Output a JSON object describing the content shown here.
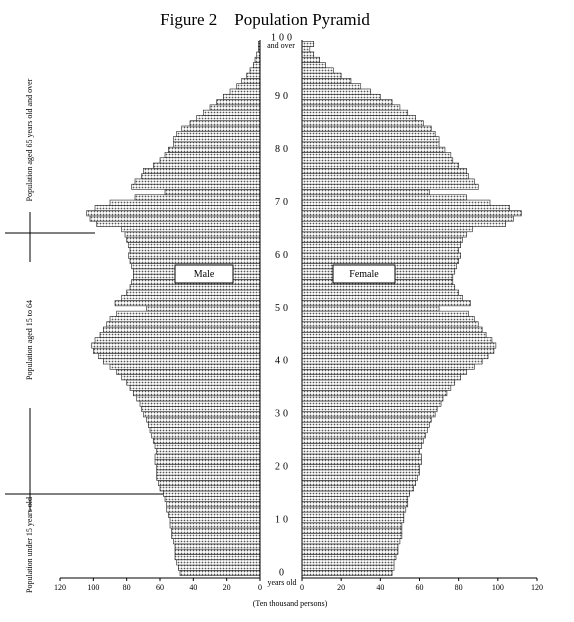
{
  "chart_data": {
    "type": "pyramid",
    "title": "Figure 2　Population Pyramid",
    "x": [
      0,
      1,
      2,
      3,
      4,
      5,
      6,
      7,
      8,
      9,
      10,
      11,
      12,
      13,
      14,
      15,
      16,
      17,
      18,
      19,
      20,
      21,
      22,
      23,
      24,
      25,
      26,
      27,
      28,
      29,
      30,
      31,
      32,
      33,
      34,
      35,
      36,
      37,
      38,
      39,
      40,
      41,
      42,
      43,
      44,
      45,
      46,
      47,
      48,
      49,
      50,
      51,
      52,
      53,
      54,
      55,
      56,
      57,
      58,
      59,
      60,
      61,
      62,
      63,
      64,
      65,
      66,
      67,
      68,
      69,
      70,
      71,
      72,
      73,
      74,
      75,
      76,
      77,
      78,
      79,
      80,
      81,
      82,
      83,
      84,
      85,
      86,
      87,
      88,
      89,
      90,
      91,
      92,
      93,
      94,
      95,
      96,
      97,
      98,
      99,
      100
    ],
    "xlim": [
      0,
      100
    ],
    "xticks": [
      0,
      10,
      20,
      30,
      40,
      50,
      60,
      70,
      80,
      90,
      100
    ],
    "top_age_label": "and over",
    "age_unit": "years old",
    "value_axis_label": "(Ten thousand persons)",
    "ylim": [
      0,
      120
    ],
    "yticks": [
      0,
      20,
      40,
      60,
      80,
      100,
      120
    ],
    "series": [
      {
        "name": "Male",
        "side": "left",
        "color": "#c8c8c8",
        "values": [
          48,
          49,
          50,
          51,
          51,
          51,
          52,
          53,
          53,
          54,
          54,
          55,
          56,
          56,
          57,
          58,
          60,
          61,
          62,
          62,
          62,
          63,
          63,
          62,
          63,
          64,
          65,
          66,
          67,
          68,
          70,
          71,
          72,
          74,
          76,
          78,
          80,
          83,
          86,
          90,
          94,
          97,
          100,
          101,
          99,
          96,
          94,
          92,
          90,
          86,
          68,
          87,
          83,
          80,
          78,
          77,
          76,
          76,
          77,
          78,
          79,
          78,
          79,
          80,
          81,
          83,
          98,
          102,
          104,
          99,
          90,
          75,
          57,
          77,
          75,
          71,
          70,
          64,
          60,
          57,
          55,
          52,
          52,
          50,
          47,
          42,
          38,
          34,
          30,
          26,
          22,
          18,
          14,
          11,
          8,
          6,
          4,
          3,
          2,
          1,
          1
        ]
      },
      {
        "name": "Female",
        "side": "right",
        "color": "#c8c8c8",
        "values": [
          46,
          47,
          47,
          48,
          49,
          49,
          50,
          51,
          51,
          51,
          52,
          52,
          53,
          54,
          54,
          55,
          57,
          58,
          59,
          60,
          60,
          61,
          61,
          60,
          61,
          62,
          63,
          64,
          65,
          66,
          68,
          69,
          71,
          72,
          74,
          76,
          78,
          81,
          84,
          88,
          92,
          95,
          98,
          99,
          97,
          94,
          92,
          90,
          88,
          85,
          70,
          86,
          82,
          80,
          78,
          77,
          77,
          78,
          79,
          80,
          81,
          80,
          81,
          82,
          84,
          87,
          104,
          108,
          112,
          106,
          96,
          84,
          65,
          90,
          88,
          85,
          84,
          80,
          77,
          76,
          73,
          70,
          70,
          68,
          66,
          62,
          58,
          54,
          50,
          46,
          40,
          35,
          30,
          25,
          20,
          16,
          12,
          9,
          6,
          4,
          6
        ]
      }
    ],
    "group_labels": [
      "Population aged 65 years old and over",
      "Population aged 15 to 64",
      "Population under 15 years old"
    ]
  }
}
